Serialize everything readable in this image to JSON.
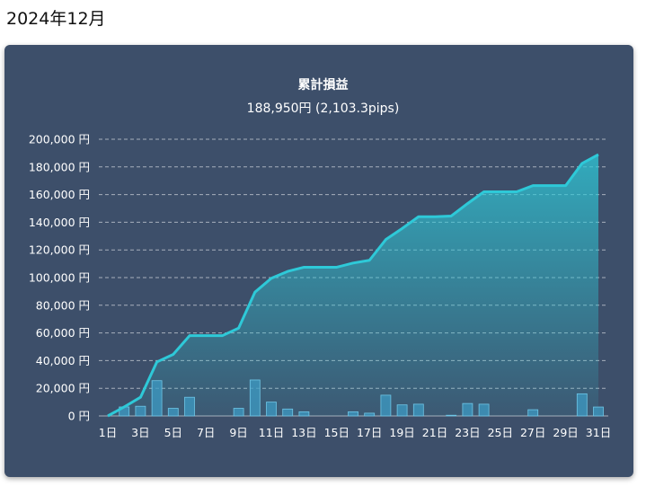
{
  "page": {
    "heading": "2024年12月"
  },
  "chart_data": {
    "type": "line",
    "title": "累計損益",
    "subtitle": "188,950円 (2,103.3pips)",
    "y_unit": "円",
    "ylim": [
      0,
      200000
    ],
    "y_ticks": [
      "0 円",
      "20,000 円",
      "40,000 円",
      "60,000 円",
      "80,000 円",
      "100,000 円",
      "120,000 円",
      "140,000 円",
      "160,000 円",
      "180,000 円",
      "200,000 円"
    ],
    "x": [
      "1日",
      "2日",
      "3日",
      "4日",
      "5日",
      "6日",
      "7日",
      "8日",
      "9日",
      "10日",
      "11日",
      "12日",
      "13日",
      "14日",
      "15日",
      "16日",
      "17日",
      "18日",
      "19日",
      "20日",
      "21日",
      "22日",
      "23日",
      "24日",
      "25日",
      "26日",
      "27日",
      "28日",
      "29日",
      "30日",
      "31日"
    ],
    "x_tick_labels_shown": [
      "1日",
      "3日",
      "5日",
      "7日",
      "9日",
      "11日",
      "13日",
      "15日",
      "17日",
      "19日",
      "21日",
      "23日",
      "25日",
      "27日",
      "29日",
      "31日"
    ],
    "grid": true,
    "series": [
      {
        "type": "area",
        "role": "cumulative",
        "color": "#2ec9d8",
        "values": [
          0,
          6500,
          13500,
          39000,
          44500,
          58000,
          58000,
          58000,
          63500,
          89500,
          99500,
          104500,
          107500,
          107500,
          107500,
          110500,
          112500,
          127500,
          135500,
          144000,
          144000,
          144500,
          153500,
          162000,
          162000,
          162000,
          166500,
          166500,
          166500,
          182500,
          188950
        ]
      },
      {
        "type": "bar",
        "role": "daily",
        "color": "#3d9bc4",
        "values": [
          0,
          6500,
          7000,
          25500,
          5500,
          13500,
          0,
          0,
          5500,
          26000,
          10000,
          5000,
          3000,
          0,
          0,
          3000,
          2000,
          15000,
          8000,
          8500,
          0,
          500,
          9000,
          8500,
          0,
          0,
          4500,
          0,
          0,
          16000,
          6450
        ]
      }
    ]
  }
}
